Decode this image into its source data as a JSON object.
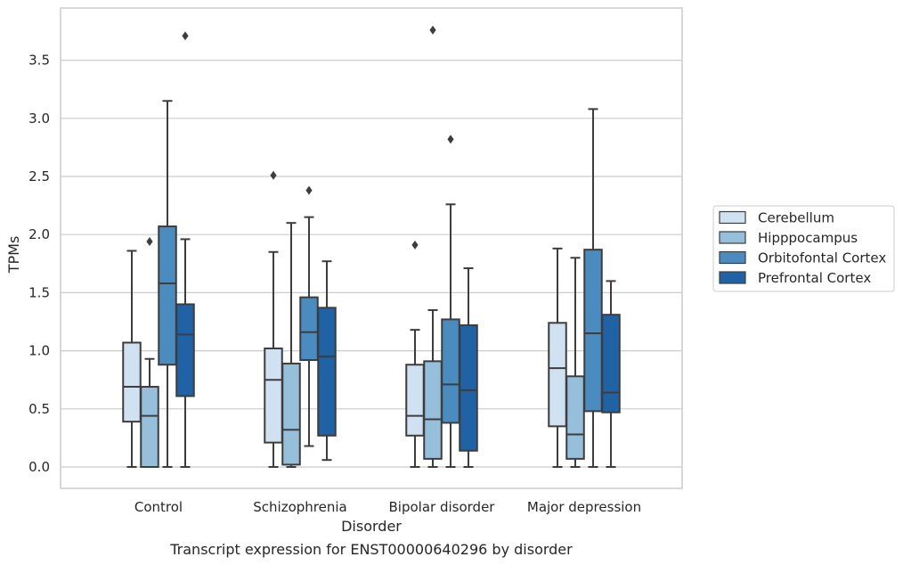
{
  "chart_data": {
    "type": "boxplot",
    "title": "Transcript expression for ENST00000640296 by disorder",
    "xlabel": "Disorder",
    "ylabel": "TPMs",
    "ylim": [
      -0.18,
      3.98
    ],
    "yticks": [
      "0.0",
      "0.5",
      "1.0",
      "1.5",
      "2.0",
      "2.5",
      "3.0",
      "3.5"
    ],
    "ytick_values": [
      0.0,
      0.5,
      1.0,
      1.5,
      2.0,
      2.5,
      3.0,
      3.5
    ],
    "grid": "horizontal",
    "legend_position": "right",
    "categories": [
      "Control",
      "Schizophrenia",
      "Bipolar disorder",
      "Major depression"
    ],
    "series": [
      {
        "name": "Cerebellum",
        "color": "#d0e2f2",
        "boxes": [
          {
            "whislo": 0.0,
            "q1": 0.39,
            "med": 0.69,
            "q3": 1.07,
            "whishi": 1.86,
            "fliers": []
          },
          {
            "whislo": 0.0,
            "q1": 0.21,
            "med": 0.75,
            "q3": 1.02,
            "whishi": 1.85,
            "fliers": [
              2.51
            ]
          },
          {
            "whislo": 0.0,
            "q1": 0.27,
            "med": 0.44,
            "q3": 0.88,
            "whishi": 1.18,
            "fliers": [
              1.91
            ]
          },
          {
            "whislo": 0.0,
            "q1": 0.35,
            "med": 0.85,
            "q3": 1.24,
            "whishi": 1.88,
            "fliers": []
          }
        ]
      },
      {
        "name": "Hipppocampus",
        "color": "#95bfdb",
        "boxes": [
          {
            "whislo": 0.0,
            "q1": 0.0,
            "med": 0.44,
            "q3": 0.69,
            "whishi": 0.93,
            "fliers": [
              1.94
            ]
          },
          {
            "whislo": 0.0,
            "q1": 0.02,
            "med": 0.32,
            "q3": 0.89,
            "whishi": 2.1,
            "fliers": []
          },
          {
            "whislo": 0.0,
            "q1": 0.07,
            "med": 0.41,
            "q3": 0.91,
            "whishi": 1.35,
            "fliers": [
              3.76
            ]
          },
          {
            "whislo": 0.0,
            "q1": 0.07,
            "med": 0.28,
            "q3": 0.78,
            "whishi": 1.8,
            "fliers": []
          }
        ]
      },
      {
        "name": "Orbitofontal Cortex",
        "color": "#4a8cbf",
        "boxes": [
          {
            "whislo": 0.0,
            "q1": 0.88,
            "med": 1.58,
            "q3": 2.07,
            "whishi": 3.15,
            "fliers": []
          },
          {
            "whislo": 0.18,
            "q1": 0.92,
            "med": 1.16,
            "q3": 1.46,
            "whishi": 2.15,
            "fliers": [
              2.38
            ]
          },
          {
            "whislo": 0.0,
            "q1": 0.38,
            "med": 0.71,
            "q3": 1.27,
            "whishi": 2.26,
            "fliers": [
              2.82
            ]
          },
          {
            "whislo": 0.0,
            "q1": 0.48,
            "med": 1.15,
            "q3": 1.87,
            "whishi": 3.08,
            "fliers": []
          }
        ]
      },
      {
        "name": "Prefrontal Cortex",
        "color": "#1f62a5",
        "boxes": [
          {
            "whislo": 0.0,
            "q1": 0.61,
            "med": 1.14,
            "q3": 1.4,
            "whishi": 1.96,
            "fliers": [
              3.71
            ]
          },
          {
            "whislo": 0.06,
            "q1": 0.27,
            "med": 0.95,
            "q3": 1.37,
            "whishi": 1.77,
            "fliers": []
          },
          {
            "whislo": 0.0,
            "q1": 0.14,
            "med": 0.66,
            "q3": 1.22,
            "whishi": 1.71,
            "fliers": []
          },
          {
            "whislo": 0.0,
            "q1": 0.47,
            "med": 0.64,
            "q3": 1.31,
            "whishi": 1.6,
            "fliers": []
          }
        ]
      }
    ],
    "colors": {
      "grid": "#cccccc",
      "frame": "#cccccc",
      "box_edge": "#3d3d3d",
      "text": "#262626"
    }
  }
}
